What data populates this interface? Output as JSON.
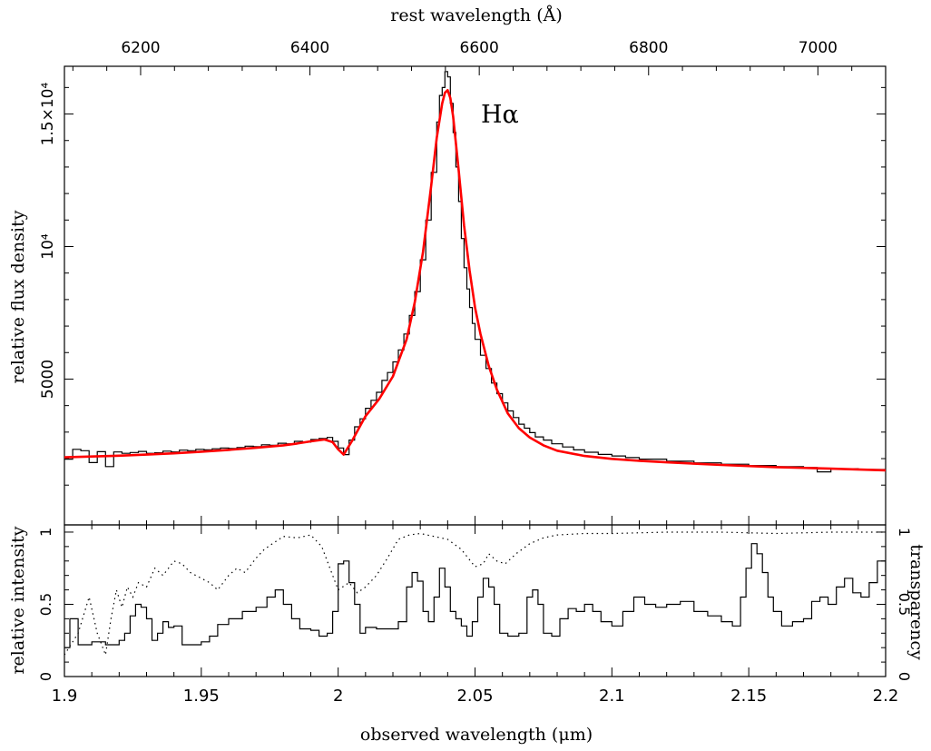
{
  "chart_data": [
    {
      "type": "line",
      "title": "",
      "annotation": "Hα",
      "xlabel": "observed wavelength (μm)",
      "x2label": "rest wavelength (Å)",
      "ylabel": "relative flux density",
      "xlim": [
        1.9,
        2.2
      ],
      "x2lim": [
        6110,
        7080
      ],
      "ylim": [
        -500,
        16800
      ],
      "x2ticks": [
        "6200",
        "6400",
        "6600",
        "6800",
        "7000"
      ],
      "yticks": [
        "5000",
        "10⁴",
        "1.5×10⁴"
      ],
      "grid": false,
      "series": [
        {
          "name": "",
          "style": "steps",
          "color": "#000000",
          "x": [
            1.9,
            1.903,
            1.906,
            1.909,
            1.912,
            1.915,
            1.918,
            1.921,
            1.924,
            1.927,
            1.93,
            1.933,
            1.936,
            1.939,
            1.942,
            1.945,
            1.948,
            1.951,
            1.954,
            1.957,
            1.96,
            1.963,
            1.966,
            1.969,
            1.972,
            1.975,
            1.978,
            1.981,
            1.984,
            1.987,
            1.99,
            1.993,
            1.996,
            1.998,
            2.0,
            2.002,
            2.004,
            2.006,
            2.008,
            2.01,
            2.012,
            2.014,
            2.016,
            2.018,
            2.02,
            2.022,
            2.024,
            2.026,
            2.028,
            2.03,
            2.032,
            2.034,
            2.036,
            2.037,
            2.038,
            2.039,
            2.04,
            2.041,
            2.042,
            2.043,
            2.044,
            2.045,
            2.046,
            2.047,
            2.048,
            2.049,
            2.05,
            2.052,
            2.054,
            2.056,
            2.058,
            2.06,
            2.062,
            2.064,
            2.066,
            2.068,
            2.07,
            2.072,
            2.075,
            2.078,
            2.082,
            2.086,
            2.09,
            2.095,
            2.1,
            2.105,
            2.11,
            2.12,
            2.13,
            2.14,
            2.15,
            2.16,
            2.17,
            2.175,
            2.18,
            2.19,
            2.2
          ],
          "y": [
            1980,
            2350,
            2300,
            1850,
            2260,
            1700,
            2250,
            2200,
            2230,
            2270,
            2200,
            2220,
            2280,
            2250,
            2320,
            2300,
            2350,
            2330,
            2370,
            2400,
            2380,
            2420,
            2470,
            2450,
            2520,
            2500,
            2580,
            2560,
            2650,
            2620,
            2720,
            2760,
            2800,
            2650,
            2400,
            2150,
            2700,
            3200,
            3500,
            3900,
            4200,
            4500,
            4950,
            5250,
            5650,
            6100,
            6700,
            7400,
            8300,
            9500,
            11000,
            12800,
            14700,
            15700,
            16000,
            16600,
            16400,
            15400,
            14300,
            13000,
            11700,
            10300,
            9200,
            8400,
            7700,
            7100,
            6500,
            5900,
            5400,
            4850,
            4450,
            4100,
            3800,
            3550,
            3300,
            3150,
            2980,
            2820,
            2700,
            2560,
            2440,
            2330,
            2240,
            2160,
            2100,
            2040,
            1980,
            1900,
            1840,
            1790,
            1740,
            1700,
            1660,
            1500,
            1620,
            1590,
            1560
          ]
        },
        {
          "name": "",
          "style": "smooth",
          "color": "#ff0000",
          "x": [
            1.9,
            1.91,
            1.92,
            1.93,
            1.94,
            1.95,
            1.96,
            1.97,
            1.98,
            1.985,
            1.99,
            1.995,
            1.998,
            2.0,
            2.002,
            2.005,
            2.01,
            2.015,
            2.02,
            2.025,
            2.028,
            2.031,
            2.034,
            2.036,
            2.038,
            2.039,
            2.04,
            2.041,
            2.042,
            2.044,
            2.046,
            2.048,
            2.05,
            2.052,
            2.055,
            2.058,
            2.062,
            2.066,
            2.07,
            2.075,
            2.08,
            2.09,
            2.1,
            2.11,
            2.12,
            2.14,
            2.16,
            2.18,
            2.2
          ],
          "y": [
            2050,
            2080,
            2110,
            2150,
            2200,
            2260,
            2330,
            2410,
            2500,
            2570,
            2650,
            2720,
            2620,
            2350,
            2150,
            2650,
            3600,
            4250,
            5100,
            6500,
            7900,
            9800,
            12300,
            14100,
            15400,
            15800,
            15900,
            15600,
            14900,
            12900,
            10800,
            9100,
            7700,
            6700,
            5500,
            4600,
            3700,
            3150,
            2800,
            2500,
            2300,
            2100,
            1990,
            1920,
            1860,
            1760,
            1680,
            1620,
            1560
          ]
        }
      ]
    },
    {
      "type": "line",
      "title": "",
      "xlabel": "observed wavelength (μm)",
      "ylabel": "relative intensity",
      "y2label": "transparency",
      "xlim": [
        1.9,
        2.2
      ],
      "ylim": [
        0,
        1.05
      ],
      "y2lim": [
        0,
        1.05
      ],
      "xticks": [
        "1.9",
        "1.95",
        "2",
        "2.05",
        "2.1",
        "2.15",
        "2.2"
      ],
      "yticks": [
        "0",
        "0.5",
        "1"
      ],
      "y2ticks": [
        "0",
        "0.5",
        "1"
      ],
      "grid": false,
      "series": [
        {
          "name": "",
          "style": "steps",
          "color": "#000000",
          "x": [
            1.9,
            1.902,
            1.905,
            1.91,
            1.915,
            1.92,
            1.922,
            1.924,
            1.926,
            1.928,
            1.93,
            1.932,
            1.934,
            1.936,
            1.938,
            1.94,
            1.943,
            1.946,
            1.95,
            1.953,
            1.956,
            1.96,
            1.965,
            1.97,
            1.974,
            1.977,
            1.98,
            1.983,
            1.986,
            1.99,
            1.993,
            1.996,
            1.998,
            2.0,
            2.002,
            2.004,
            2.006,
            2.008,
            2.01,
            2.014,
            2.018,
            2.022,
            2.025,
            2.027,
            2.029,
            2.031,
            2.033,
            2.035,
            2.037,
            2.039,
            2.041,
            2.043,
            2.045,
            2.047,
            2.049,
            2.051,
            2.053,
            2.055,
            2.057,
            2.059,
            2.062,
            2.066,
            2.069,
            2.071,
            2.073,
            2.075,
            2.078,
            2.081,
            2.084,
            2.087,
            2.09,
            2.093,
            2.096,
            2.1,
            2.104,
            2.108,
            2.112,
            2.116,
            2.12,
            2.125,
            2.13,
            2.135,
            2.14,
            2.144,
            2.147,
            2.149,
            2.151,
            2.153,
            2.155,
            2.157,
            2.159,
            2.162,
            2.166,
            2.17,
            2.173,
            2.176,
            2.179,
            2.182,
            2.185,
            2.188,
            2.191,
            2.194,
            2.197,
            2.2
          ],
          "y": [
            0.2,
            0.4,
            0.22,
            0.24,
            0.22,
            0.25,
            0.3,
            0.42,
            0.5,
            0.48,
            0.4,
            0.25,
            0.3,
            0.38,
            0.34,
            0.35,
            0.22,
            0.22,
            0.24,
            0.28,
            0.36,
            0.4,
            0.45,
            0.48,
            0.55,
            0.6,
            0.5,
            0.4,
            0.33,
            0.32,
            0.28,
            0.3,
            0.45,
            0.78,
            0.8,
            0.65,
            0.5,
            0.3,
            0.34,
            0.33,
            0.33,
            0.38,
            0.62,
            0.72,
            0.66,
            0.45,
            0.38,
            0.55,
            0.75,
            0.62,
            0.45,
            0.4,
            0.35,
            0.28,
            0.38,
            0.55,
            0.68,
            0.62,
            0.5,
            0.3,
            0.28,
            0.3,
            0.55,
            0.6,
            0.5,
            0.3,
            0.28,
            0.4,
            0.47,
            0.45,
            0.5,
            0.45,
            0.38,
            0.35,
            0.45,
            0.55,
            0.5,
            0.48,
            0.5,
            0.52,
            0.45,
            0.42,
            0.38,
            0.35,
            0.55,
            0.75,
            0.92,
            0.85,
            0.72,
            0.55,
            0.45,
            0.35,
            0.38,
            0.4,
            0.52,
            0.55,
            0.5,
            0.62,
            0.68,
            0.58,
            0.55,
            0.65,
            0.8,
            0.72
          ]
        },
        {
          "name": "",
          "style": "dotted",
          "color": "#000000",
          "x": [
            1.9,
            1.905,
            1.909,
            1.912,
            1.915,
            1.917,
            1.919,
            1.921,
            1.923,
            1.925,
            1.927,
            1.93,
            1.933,
            1.936,
            1.94,
            1.943,
            1.946,
            1.95,
            1.953,
            1.956,
            1.96,
            1.963,
            1.966,
            1.97,
            1.973,
            1.976,
            1.98,
            1.985,
            1.99,
            1.994,
            1.997,
            2.0,
            2.004,
            2.007,
            2.01,
            2.014,
            2.018,
            2.022,
            2.026,
            2.03,
            2.035,
            2.04,
            2.045,
            2.05,
            2.053,
            2.055,
            2.058,
            2.061,
            2.065,
            2.07,
            2.075,
            2.08,
            2.09,
            2.1,
            2.12,
            2.14,
            2.16,
            2.18,
            2.2
          ],
          "y": [
            0.15,
            0.3,
            0.55,
            0.3,
            0.15,
            0.4,
            0.6,
            0.48,
            0.62,
            0.55,
            0.65,
            0.62,
            0.75,
            0.7,
            0.8,
            0.78,
            0.72,
            0.68,
            0.65,
            0.6,
            0.7,
            0.75,
            0.72,
            0.82,
            0.88,
            0.92,
            0.97,
            0.96,
            0.98,
            0.9,
            0.75,
            0.6,
            0.65,
            0.58,
            0.62,
            0.7,
            0.82,
            0.95,
            0.98,
            0.99,
            0.97,
            0.95,
            0.88,
            0.76,
            0.78,
            0.85,
            0.8,
            0.78,
            0.85,
            0.92,
            0.96,
            0.98,
            0.99,
            0.99,
            1.0,
            1.0,
            0.99,
            1.0,
            1.0
          ]
        }
      ]
    }
  ]
}
